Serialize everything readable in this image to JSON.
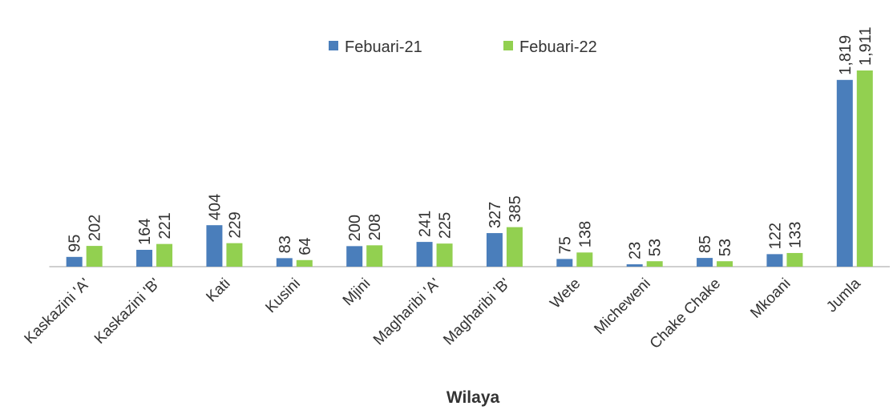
{
  "chart_data": {
    "type": "bar",
    "x_label": "Wilaya",
    "categories": [
      "Kaskazini 'A'",
      "Kaskazini 'B'",
      "Kati",
      "Kusini",
      "Mjini",
      "Magharibi 'A'",
      "Magharibi 'B'",
      "Wete",
      "Micheweni",
      "Chake Chake",
      "Mkoani",
      "Jumla"
    ],
    "series": [
      {
        "name": "Febuari-21",
        "color": "#4a7ebb",
        "values": [
          95,
          164,
          404,
          83,
          200,
          241,
          327,
          75,
          23,
          85,
          122,
          1819
        ],
        "value_labels": [
          "95",
          "164",
          "404",
          "83",
          "200",
          "241",
          "327",
          "75",
          "23",
          "85",
          "122",
          "1,819"
        ]
      },
      {
        "name": "Febuari-22",
        "color": "#92d050",
        "values": [
          202,
          221,
          229,
          64,
          208,
          225,
          385,
          138,
          53,
          53,
          133,
          1911
        ],
        "value_labels": [
          "202",
          "221",
          "229",
          "64",
          "208",
          "225",
          "385",
          "138",
          "53",
          "53",
          "133",
          "1,911"
        ]
      }
    ],
    "legend": "top"
  }
}
